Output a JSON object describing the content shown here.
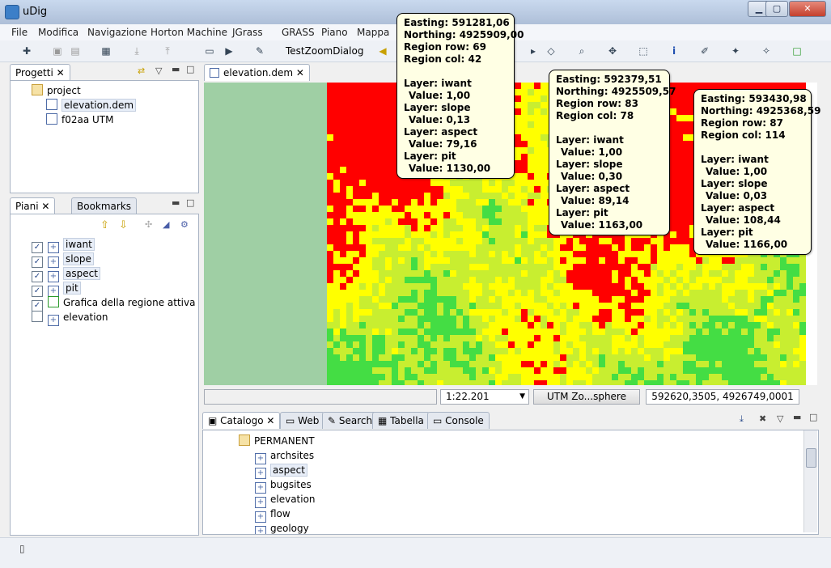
{
  "window": {
    "title": "uDig"
  },
  "menus": [
    "File",
    "Modifica",
    "Navigazione",
    "Horton Machine",
    "JGrass",
    "GRASS",
    "Piano",
    "Mappa"
  ],
  "toolbar": {
    "dialog_label": "TestZoomDialog"
  },
  "projects_view": {
    "tab_label": "Progetti",
    "items": [
      "project",
      "elevation.dem",
      "f02aa UTM"
    ]
  },
  "layers_view": {
    "tab_label": "Piani",
    "bookmarks_tab": "Bookmarks",
    "layers": [
      {
        "name": "iwant",
        "checked": true
      },
      {
        "name": "slope",
        "checked": true
      },
      {
        "name": "aspect",
        "checked": true
      },
      {
        "name": "pit",
        "checked": true
      },
      {
        "name": "Grafica della regione attiva",
        "checked": true
      },
      {
        "name": "elevation",
        "checked": false
      }
    ]
  },
  "editor": {
    "tab_label": "elevation.dem"
  },
  "map_status": {
    "scale": "1:22.201",
    "crs_button": "UTM Zo...sphere",
    "coords": "592620,3505, 4926749,0001"
  },
  "catalog_view": {
    "tabs": [
      "Catalogo",
      "Web",
      "Search",
      "Tabella",
      "Console"
    ],
    "folder": "PERMANENT",
    "items": [
      "archsites",
      "aspect",
      "bugsites",
      "elevation",
      "flow",
      "geology"
    ]
  },
  "tooltips": [
    {
      "easting": "Easting: 591281,06",
      "northing": "Northing: 4925909,00",
      "row": "Region row: 69",
      "col": "Region col: 42",
      "layers": [
        [
          "Layer: iwant",
          "Value: 1,00"
        ],
        [
          "Layer: slope",
          "Value: 0,13"
        ],
        [
          "Layer: aspect",
          "Value: 79,16"
        ],
        [
          "Layer: pit",
          "Value: 1130,00"
        ]
      ]
    },
    {
      "easting": "Easting: 592379,51",
      "northing": "Northing: 4925509,57",
      "row": "Region row: 83",
      "col": "Region col: 78",
      "layers": [
        [
          "Layer: iwant",
          "Value: 1,00"
        ],
        [
          "Layer: slope",
          "Value: 0,30"
        ],
        [
          "Layer: aspect",
          "Value: 89,14"
        ],
        [
          "Layer: pit",
          "Value: 1163,00"
        ]
      ]
    },
    {
      "easting": "Easting: 593430,98",
      "northing": "Northing: 4925368,59",
      "row": "Region row: 87",
      "col": "Region col: 114",
      "layers": [
        [
          "Layer: iwant",
          "Value: 1,00"
        ],
        [
          "Layer: slope",
          "Value: 0,03"
        ],
        [
          "Layer: aspect",
          "Value: 108,44"
        ],
        [
          "Layer: pit",
          "Value: 1166,00"
        ]
      ]
    }
  ],
  "colors": {
    "raster_high": "#ff0000",
    "raster_mid": "#ffff00",
    "raster_low": "#44dd44",
    "map_bg": "#9fcfa4"
  }
}
